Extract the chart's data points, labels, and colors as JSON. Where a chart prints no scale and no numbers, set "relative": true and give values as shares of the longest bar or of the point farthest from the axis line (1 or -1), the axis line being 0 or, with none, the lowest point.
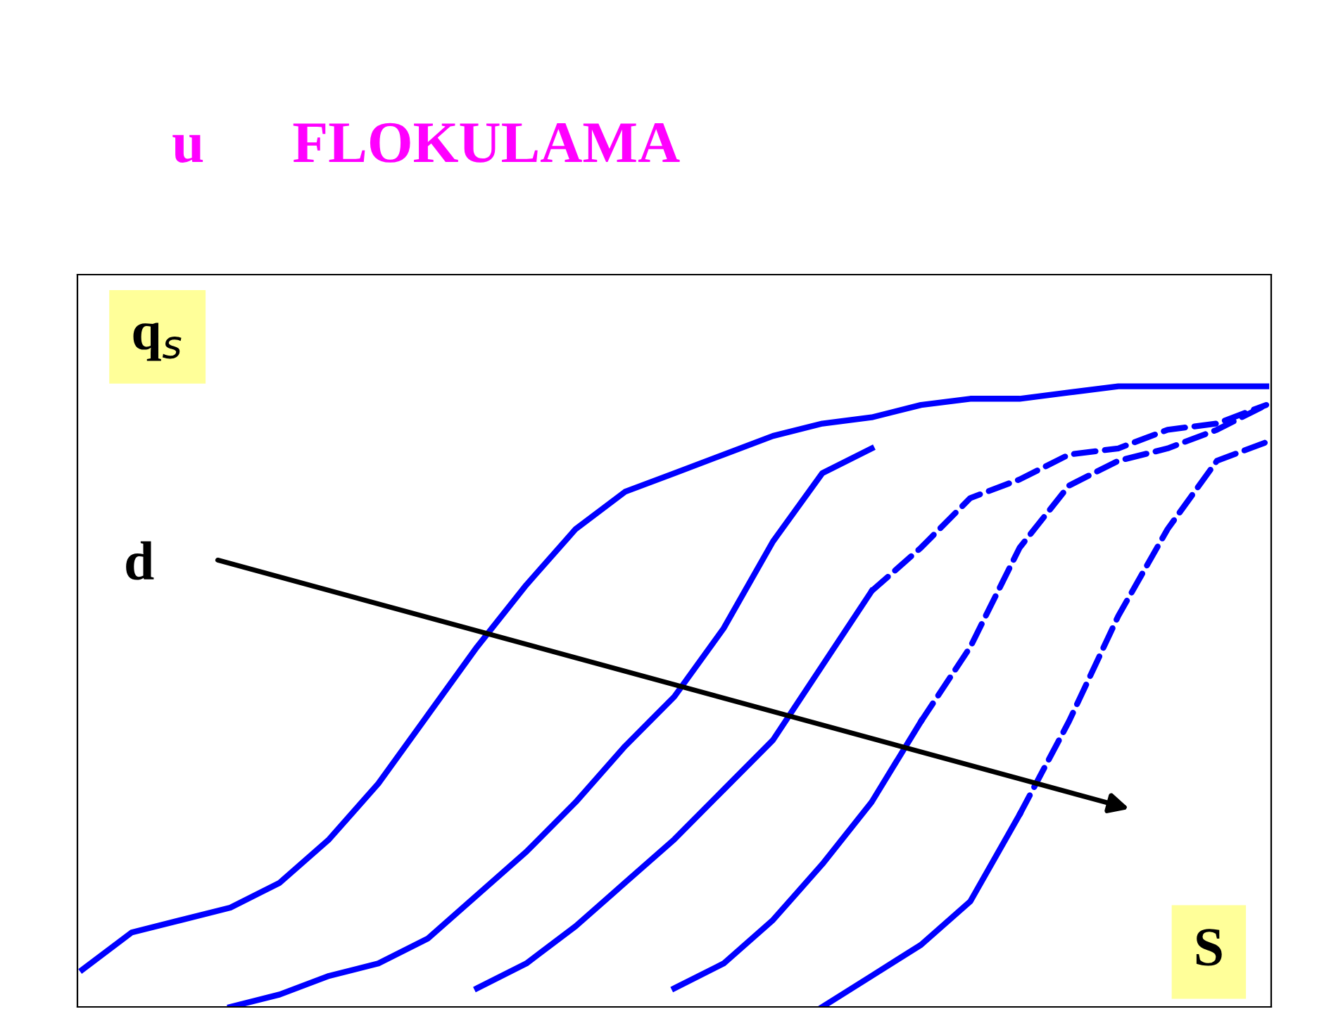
{
  "chart_data": {
    "type": "line",
    "title": "u      FLOKULAMA",
    "xlabel": "S",
    "ylabel": "q$_{s}$",
    "relative": true,
    "grid": false,
    "legend": false,
    "marker": "none",
    "annotations": [
      "d"
    ],
    "categories": [
      null,
      null,
      null,
      null,
      null,
      null,
      null,
      null,
      null,
      null,
      null,
      null,
      null,
      null,
      null,
      null,
      null,
      null,
      null,
      null,
      null,
      null,
      null,
      null,
      null
    ],
    "series": [
      {
        "color": "#0000ff",
        "line_style": "solid",
        "values": [
          0.06,
          0.12,
          0.14,
          0.16,
          0.2,
          0.27,
          0.36,
          0.47,
          0.58,
          0.68,
          0.77,
          0.83,
          0.86,
          0.89,
          0.92,
          0.94,
          0.95,
          0.97,
          0.98,
          0.98,
          0.99,
          1.0,
          1.0,
          1.0,
          1.0
        ]
      },
      {
        "color": "#0000ff",
        "line_style": "solid",
        "values": [
          null,
          null,
          null,
          0.0,
          0.02,
          0.05,
          0.07,
          0.11,
          0.18,
          0.25,
          0.33,
          0.42,
          0.5,
          0.61,
          0.75,
          0.86,
          0.9,
          null,
          null,
          null,
          null,
          null,
          null,
          null,
          null
        ]
      },
      {
        "color": "#0000ff",
        "line_style": "solid",
        "values": [
          null,
          null,
          null,
          null,
          null,
          null,
          null,
          null,
          0.03,
          0.07,
          0.13,
          0.2,
          0.27,
          0.35,
          0.43,
          0.55,
          0.67,
          null,
          null,
          null,
          null,
          null,
          null,
          null,
          null
        ]
      },
      {
        "color": "#0000ff",
        "line_style": "dashed",
        "values": [
          null,
          null,
          null,
          null,
          null,
          null,
          null,
          null,
          null,
          null,
          null,
          null,
          null,
          null,
          null,
          null,
          0.67,
          0.74,
          0.82,
          0.85,
          0.89,
          0.9,
          0.93,
          0.94,
          0.97
        ]
      },
      {
        "color": "#0000ff",
        "line_style": "solid",
        "values": [
          null,
          null,
          null,
          null,
          null,
          null,
          null,
          null,
          null,
          null,
          null,
          null,
          0.03,
          0.07,
          0.14,
          0.23,
          0.33,
          0.46,
          null,
          null,
          null,
          null,
          null,
          null,
          null
        ]
      },
      {
        "color": "#0000ff",
        "line_style": "dashed",
        "values": [
          null,
          null,
          null,
          null,
          null,
          null,
          null,
          null,
          null,
          null,
          null,
          null,
          null,
          null,
          null,
          null,
          null,
          0.46,
          0.58,
          0.74,
          0.84,
          0.88,
          0.9,
          0.93,
          0.97
        ]
      },
      {
        "color": "#0000ff",
        "line_style": "solid",
        "values": [
          null,
          null,
          null,
          null,
          null,
          null,
          null,
          null,
          null,
          null,
          null,
          null,
          null,
          null,
          null,
          0.0,
          0.05,
          0.1,
          0.17,
          0.31,
          null,
          null,
          null,
          null,
          null
        ]
      },
      {
        "color": "#0000ff",
        "line_style": "dashed",
        "values": [
          null,
          null,
          null,
          null,
          null,
          null,
          null,
          null,
          null,
          null,
          null,
          null,
          null,
          null,
          null,
          null,
          null,
          null,
          null,
          0.31,
          0.46,
          0.63,
          0.77,
          0.88,
          0.91
        ]
      }
    ]
  }
}
